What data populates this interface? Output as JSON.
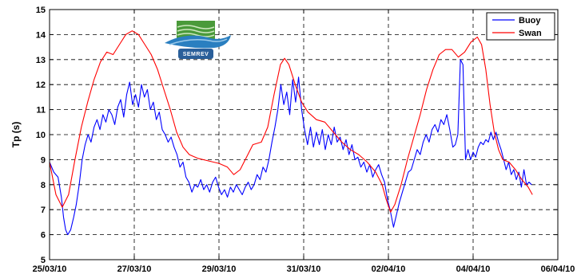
{
  "chart_data": {
    "type": "line",
    "ylabel": "Tp (s)",
    "xlabel": "",
    "title": "",
    "ylim": [
      5,
      15
    ],
    "yticks": [
      5,
      6,
      7,
      8,
      9,
      10,
      11,
      12,
      13,
      14,
      15
    ],
    "xticks": [
      "25/03/10",
      "27/03/10",
      "29/03/10",
      "31/03/10",
      "02/04/10",
      "04/04/10",
      "06/04/10"
    ],
    "xlim_days": [
      0,
      12
    ],
    "grid": true,
    "legend": "top-right",
    "logo_text": "SEMREV",
    "series": [
      {
        "name": "Buoy",
        "color": "#0000ff",
        "points": [
          [
            0.0,
            8.9
          ],
          [
            0.1,
            8.5
          ],
          [
            0.2,
            8.3
          ],
          [
            0.28,
            7.5
          ],
          [
            0.33,
            6.7
          ],
          [
            0.38,
            6.2
          ],
          [
            0.43,
            6.0
          ],
          [
            0.5,
            6.2
          ],
          [
            0.57,
            6.7
          ],
          [
            0.63,
            7.2
          ],
          [
            0.7,
            8.0
          ],
          [
            0.77,
            9.0
          ],
          [
            0.84,
            9.6
          ],
          [
            0.91,
            10.0
          ],
          [
            0.98,
            9.7
          ],
          [
            1.05,
            10.3
          ],
          [
            1.12,
            10.6
          ],
          [
            1.19,
            10.2
          ],
          [
            1.26,
            10.8
          ],
          [
            1.33,
            10.5
          ],
          [
            1.4,
            11.0
          ],
          [
            1.47,
            10.8
          ],
          [
            1.54,
            10.4
          ],
          [
            1.61,
            11.1
          ],
          [
            1.68,
            11.4
          ],
          [
            1.75,
            10.7
          ],
          [
            1.82,
            11.6
          ],
          [
            1.89,
            12.1
          ],
          [
            1.96,
            11.2
          ],
          [
            2.03,
            11.6
          ],
          [
            2.1,
            11.1
          ],
          [
            2.17,
            12.0
          ],
          [
            2.24,
            11.5
          ],
          [
            2.31,
            11.8
          ],
          [
            2.38,
            11.0
          ],
          [
            2.45,
            11.3
          ],
          [
            2.52,
            10.6
          ],
          [
            2.59,
            10.9
          ],
          [
            2.66,
            10.2
          ],
          [
            2.73,
            10.0
          ],
          [
            2.8,
            9.7
          ],
          [
            2.87,
            9.9
          ],
          [
            2.94,
            9.5
          ],
          [
            3.01,
            9.2
          ],
          [
            3.08,
            8.7
          ],
          [
            3.15,
            8.9
          ],
          [
            3.22,
            8.3
          ],
          [
            3.29,
            8.1
          ],
          [
            3.36,
            7.7
          ],
          [
            3.43,
            8.0
          ],
          [
            3.5,
            7.9
          ],
          [
            3.57,
            8.2
          ],
          [
            3.64,
            7.8
          ],
          [
            3.71,
            8.0
          ],
          [
            3.78,
            7.7
          ],
          [
            3.85,
            8.1
          ],
          [
            3.92,
            8.3
          ],
          [
            3.99,
            7.9
          ],
          [
            4.06,
            7.6
          ],
          [
            4.13,
            7.8
          ],
          [
            4.2,
            7.5
          ],
          [
            4.27,
            7.9
          ],
          [
            4.34,
            7.7
          ],
          [
            4.41,
            8.0
          ],
          [
            4.48,
            7.8
          ],
          [
            4.55,
            7.6
          ],
          [
            4.62,
            7.9
          ],
          [
            4.69,
            8.1
          ],
          [
            4.76,
            7.8
          ],
          [
            4.83,
            8.0
          ],
          [
            4.9,
            8.4
          ],
          [
            4.97,
            8.2
          ],
          [
            5.04,
            8.7
          ],
          [
            5.11,
            8.5
          ],
          [
            5.18,
            9.0
          ],
          [
            5.25,
            9.7
          ],
          [
            5.32,
            10.3
          ],
          [
            5.39,
            11.0
          ],
          [
            5.46,
            12.0
          ],
          [
            5.53,
            11.2
          ],
          [
            5.6,
            11.7
          ],
          [
            5.67,
            10.8
          ],
          [
            5.74,
            12.2
          ],
          [
            5.81,
            11.3
          ],
          [
            5.88,
            12.3
          ],
          [
            5.95,
            11.0
          ],
          [
            6.02,
            10.2
          ],
          [
            6.09,
            9.6
          ],
          [
            6.16,
            10.3
          ],
          [
            6.23,
            9.5
          ],
          [
            6.3,
            10.1
          ],
          [
            6.37,
            9.6
          ],
          [
            6.44,
            10.2
          ],
          [
            6.51,
            9.4
          ],
          [
            6.58,
            10.0
          ],
          [
            6.65,
            9.6
          ],
          [
            6.72,
            10.3
          ],
          [
            6.79,
            9.7
          ],
          [
            6.86,
            9.9
          ],
          [
            6.93,
            9.4
          ],
          [
            7.0,
            9.8
          ],
          [
            7.07,
            9.2
          ],
          [
            7.14,
            9.6
          ],
          [
            7.21,
            9.0
          ],
          [
            7.28,
            9.1
          ],
          [
            7.35,
            8.7
          ],
          [
            7.42,
            8.9
          ],
          [
            7.49,
            8.5
          ],
          [
            7.56,
            8.8
          ],
          [
            7.63,
            8.3
          ],
          [
            7.7,
            8.6
          ],
          [
            7.77,
            8.8
          ],
          [
            7.84,
            8.4
          ],
          [
            7.91,
            8.1
          ],
          [
            7.98,
            7.4
          ],
          [
            8.05,
            6.9
          ],
          [
            8.12,
            6.3
          ],
          [
            8.19,
            6.8
          ],
          [
            8.26,
            7.3
          ],
          [
            8.33,
            7.7
          ],
          [
            8.4,
            8.1
          ],
          [
            8.47,
            8.5
          ],
          [
            8.54,
            8.6
          ],
          [
            8.61,
            9.0
          ],
          [
            8.68,
            9.4
          ],
          [
            8.75,
            9.2
          ],
          [
            8.82,
            9.7
          ],
          [
            8.89,
            10.0
          ],
          [
            8.96,
            9.7
          ],
          [
            9.03,
            10.2
          ],
          [
            9.1,
            10.4
          ],
          [
            9.17,
            10.1
          ],
          [
            9.24,
            10.6
          ],
          [
            9.31,
            10.4
          ],
          [
            9.38,
            10.8
          ],
          [
            9.45,
            10.2
          ],
          [
            9.52,
            9.5
          ],
          [
            9.58,
            9.6
          ],
          [
            9.64,
            10.0
          ],
          [
            9.7,
            13.0
          ],
          [
            9.76,
            12.8
          ],
          [
            9.82,
            9.0
          ],
          [
            9.88,
            9.4
          ],
          [
            9.94,
            9.0
          ],
          [
            10.0,
            9.3
          ],
          [
            10.06,
            9.1
          ],
          [
            10.12,
            9.5
          ],
          [
            10.18,
            9.7
          ],
          [
            10.24,
            9.6
          ],
          [
            10.3,
            9.8
          ],
          [
            10.36,
            9.7
          ],
          [
            10.42,
            10.1
          ],
          [
            10.48,
            9.8
          ],
          [
            10.54,
            10.1
          ],
          [
            10.6,
            9.7
          ],
          [
            10.66,
            9.4
          ],
          [
            10.72,
            9.0
          ],
          [
            10.78,
            8.6
          ],
          [
            10.84,
            8.9
          ],
          [
            10.9,
            8.4
          ],
          [
            10.96,
            8.6
          ],
          [
            11.02,
            8.2
          ],
          [
            11.08,
            8.5
          ],
          [
            11.14,
            7.9
          ],
          [
            11.2,
            8.6
          ],
          [
            11.26,
            8.0
          ],
          [
            11.32,
            8.1
          ],
          [
            11.38,
            8.0
          ]
        ]
      },
      {
        "name": "Swan",
        "color": "#ff0000",
        "points": [
          [
            0.0,
            8.9
          ],
          [
            0.15,
            7.6
          ],
          [
            0.3,
            7.1
          ],
          [
            0.45,
            7.6
          ],
          [
            0.6,
            9.0
          ],
          [
            0.75,
            10.3
          ],
          [
            0.9,
            11.3
          ],
          [
            1.05,
            12.2
          ],
          [
            1.2,
            12.9
          ],
          [
            1.35,
            13.3
          ],
          [
            1.5,
            13.2
          ],
          [
            1.65,
            13.6
          ],
          [
            1.8,
            14.0
          ],
          [
            1.95,
            14.15
          ],
          [
            2.1,
            14.0
          ],
          [
            2.25,
            13.6
          ],
          [
            2.4,
            13.2
          ],
          [
            2.55,
            12.6
          ],
          [
            2.7,
            11.8
          ],
          [
            2.85,
            11.0
          ],
          [
            3.0,
            10.1
          ],
          [
            3.15,
            9.5
          ],
          [
            3.3,
            9.2
          ],
          [
            3.5,
            9.05
          ],
          [
            3.75,
            8.95
          ],
          [
            4.0,
            8.85
          ],
          [
            4.2,
            8.7
          ],
          [
            4.35,
            8.4
          ],
          [
            4.5,
            8.6
          ],
          [
            4.65,
            9.1
          ],
          [
            4.8,
            9.6
          ],
          [
            5.0,
            9.7
          ],
          [
            5.15,
            10.3
          ],
          [
            5.3,
            11.6
          ],
          [
            5.45,
            12.8
          ],
          [
            5.55,
            13.05
          ],
          [
            5.65,
            12.8
          ],
          [
            5.8,
            12.0
          ],
          [
            5.95,
            11.3
          ],
          [
            6.1,
            10.9
          ],
          [
            6.3,
            10.6
          ],
          [
            6.5,
            10.5
          ],
          [
            6.7,
            10.1
          ],
          [
            6.9,
            9.7
          ],
          [
            7.1,
            9.4
          ],
          [
            7.3,
            9.2
          ],
          [
            7.5,
            8.9
          ],
          [
            7.7,
            8.5
          ],
          [
            7.85,
            8.0
          ],
          [
            7.95,
            7.4
          ],
          [
            8.05,
            6.9
          ],
          [
            8.15,
            7.2
          ],
          [
            8.3,
            8.0
          ],
          [
            8.45,
            9.0
          ],
          [
            8.6,
            9.9
          ],
          [
            8.75,
            10.8
          ],
          [
            8.9,
            11.8
          ],
          [
            9.05,
            12.6
          ],
          [
            9.2,
            13.2
          ],
          [
            9.35,
            13.4
          ],
          [
            9.5,
            13.4
          ],
          [
            9.65,
            13.1
          ],
          [
            9.8,
            13.3
          ],
          [
            9.95,
            13.7
          ],
          [
            10.1,
            13.9
          ],
          [
            10.2,
            13.6
          ],
          [
            10.3,
            12.6
          ],
          [
            10.4,
            11.2
          ],
          [
            10.5,
            10.1
          ],
          [
            10.6,
            9.4
          ],
          [
            10.7,
            9.0
          ],
          [
            10.85,
            8.9
          ],
          [
            11.0,
            8.6
          ],
          [
            11.15,
            8.2
          ],
          [
            11.3,
            7.9
          ],
          [
            11.4,
            7.6
          ]
        ]
      }
    ]
  }
}
